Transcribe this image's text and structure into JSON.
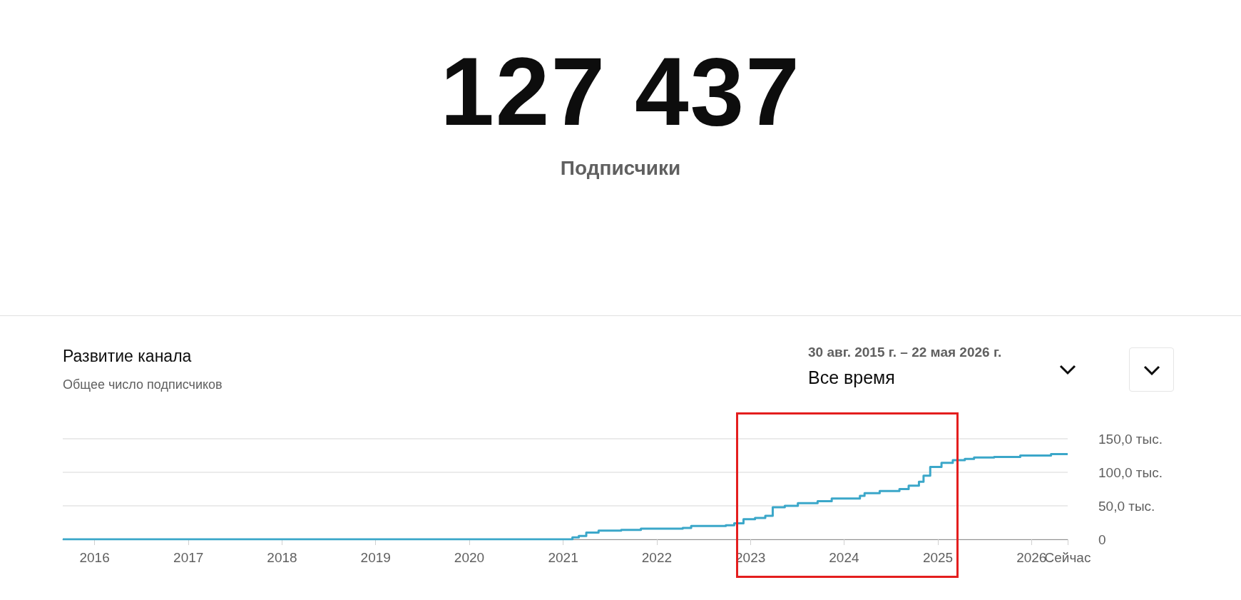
{
  "chart_data": {
    "type": "step",
    "title": "Развитие канала",
    "subtitle": "Общее число подписчиков",
    "annotations": [
      "127 437",
      "Подписчики",
      "30 авг. 2015 г. – 22 мая 2026 г.",
      "Все время"
    ],
    "x": [
      "2015-08-30",
      "2021-01-22",
      "2021-02-06",
      "2021-03-03",
      "2021-04-01",
      "2021-05-19",
      "2021-08-15",
      "2021-10-31",
      "2022-04-12",
      "2022-05-15",
      "2022-09-27",
      "2022-10-30",
      "2022-12-05",
      "2023-01-19",
      "2023-02-28",
      "2023-03-29",
      "2023-05-15",
      "2023-07-05",
      "2023-09-20",
      "2023-11-14",
      "2024-03-03",
      "2024-03-21",
      "2024-05-19",
      "2024-08-04",
      "2024-09-09",
      "2024-10-19",
      "2024-11-06",
      "2024-12-02",
      "2025-01-15",
      "2025-02-28",
      "2025-04-16",
      "2025-05-22",
      "2025-08-08",
      "2025-11-18",
      "2026-03-18",
      "2026-05-22"
    ],
    "series": [
      {
        "color": "#3ba7c9",
        "values": [
          0,
          0,
          3,
          5,
          10,
          13,
          14,
          16,
          17,
          20,
          21,
          24,
          30,
          32,
          35,
          48,
          50,
          54,
          57,
          61,
          65,
          69,
          72,
          75,
          80,
          86,
          95,
          108,
          114,
          118,
          120,
          122,
          123,
          125,
          127,
          127
        ]
      }
    ],
    "xlim": [
      "2015-08-30",
      "2026-05-22"
    ],
    "xticks": [
      {
        "value": "2016-01-01",
        "label": "2016"
      },
      {
        "value": "2017-01-01",
        "label": "2017"
      },
      {
        "value": "2018-01-01",
        "label": "2018"
      },
      {
        "value": "2019-01-01",
        "label": "2019"
      },
      {
        "value": "2020-01-01",
        "label": "2020"
      },
      {
        "value": "2021-01-01",
        "label": "2021"
      },
      {
        "value": "2022-01-01",
        "label": "2022"
      },
      {
        "value": "2023-01-01",
        "label": "2023"
      },
      {
        "value": "2024-01-01",
        "label": "2024"
      },
      {
        "value": "2025-01-01",
        "label": "2025"
      },
      {
        "value": "2026-01-01",
        "label": "2026"
      },
      {
        "value": "2026-05-22",
        "label": "Сейчас"
      }
    ],
    "ylim": [
      0,
      150
    ],
    "yticks": [
      0,
      {
        "value": 50,
        "label": "50,0 тыс."
      },
      {
        "value": 100,
        "label": "100,0 тыс."
      },
      {
        "value": 150,
        "label": "150,0 тыс."
      }
    ],
    "grid": "y",
    "marker": "none",
    "line_style": "solid"
  }
}
